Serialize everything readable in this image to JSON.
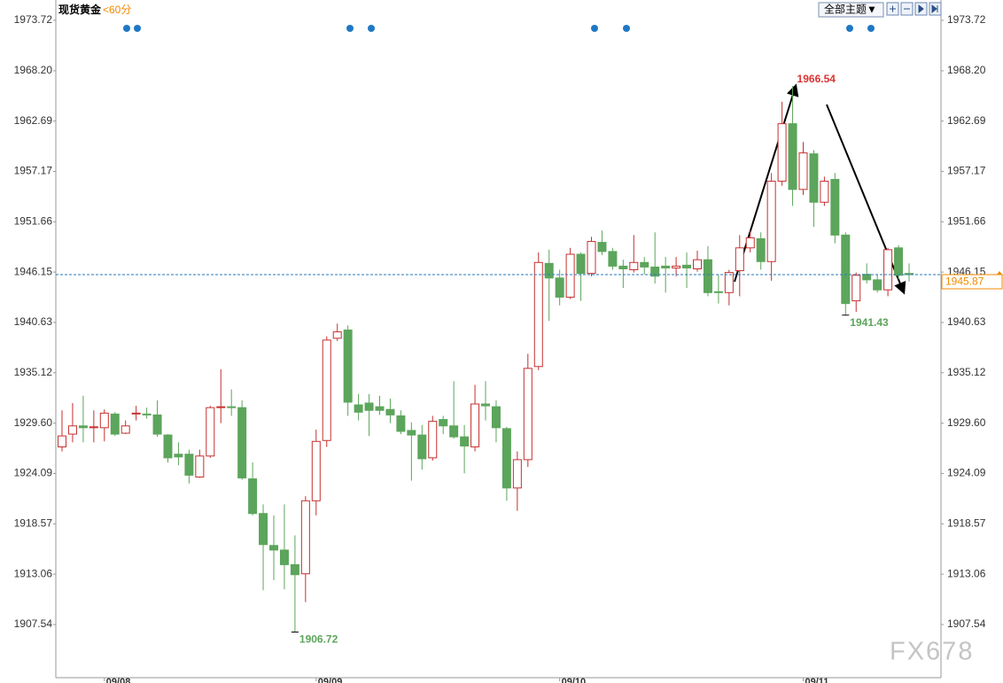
{
  "chart_data": {
    "type": "candlestick",
    "title": "现货黄金",
    "period": "<60分",
    "categories": [
      null,
      null,
      null,
      null,
      "09/08",
      null,
      null,
      null,
      null,
      null,
      null,
      null,
      null,
      null,
      null,
      null,
      null,
      null,
      null,
      null,
      null,
      null,
      null,
      null,
      "09/09",
      null,
      null,
      null,
      null,
      null,
      null,
      null,
      null,
      null,
      null,
      null,
      null,
      null,
      null,
      null,
      null,
      null,
      null,
      null,
      null,
      null,
      null,
      "09/10",
      null,
      null,
      null,
      null,
      null,
      null,
      null,
      null,
      null,
      null,
      null,
      null,
      null,
      null,
      null,
      null,
      null,
      null,
      null,
      null,
      null,
      null,
      "09/11",
      null,
      null,
      null,
      null,
      null,
      null,
      null,
      null,
      null,
      null
    ],
    "open": [
      1927.0,
      1928.4,
      1929.3,
      1929.1,
      1929.1,
      1930.6,
      1928.5,
      1930.6,
      1930.6,
      1930.5,
      1928.3,
      1926.2,
      1926.2,
      1923.7,
      1926.0,
      1931.3,
      1931.4,
      1931.3,
      1923.5,
      1919.7,
      1916.2,
      1915.7,
      1914.1,
      1913.1,
      1921.1,
      1927.7,
      1938.9,
      1939.8,
      1931.6,
      1931.8,
      1931.4,
      1931.1,
      1930.4,
      1928.8,
      1928.3,
      1925.8,
      1930.0,
      1929.3,
      1928.1,
      1927.0,
      1931.7,
      1931.4,
      1929.0,
      1922.5,
      1925.6,
      1935.8,
      1947.1,
      1945.5,
      1943.4,
      1948.1,
      1946.0,
      1949.4,
      1948.4,
      1946.8,
      1946.4,
      1947.2,
      1946.7,
      1946.8,
      1946.6,
      1946.9,
      1946.5,
      1947.5,
      1944.0,
      1943.9,
      1946.3,
      1948.8,
      1949.8,
      1947.3,
      1956.1,
      1962.4,
      1955.2,
      1959.1,
      1953.8,
      1956.3,
      1950.2,
      1943.0,
      1945.9,
      1945.3,
      1944.2,
      1948.8,
      1946.0
    ],
    "high": [
      1931.0,
      1931.8,
      1932.6,
      1931.0,
      1931.1,
      1930.8,
      1929.9,
      1931.5,
      1931.3,
      1932.1,
      1928.4,
      1927.5,
      1926.7,
      1926.7,
      1931.5,
      1935.5,
      1933.3,
      1932.1,
      1925.3,
      1920.7,
      1919.5,
      1920.7,
      1917.3,
      1921.6,
      1928.9,
      1939.1,
      1940.5,
      1940.3,
      1932.8,
      1932.8,
      1932.6,
      1932.3,
      1931.0,
      1929.7,
      1929.4,
      1930.4,
      1930.4,
      1934.2,
      1929.4,
      1933.8,
      1934.2,
      1932.1,
      1929.2,
      1926.5,
      1937.2,
      1948.3,
      1948.6,
      1946.4,
      1948.8,
      1948.3,
      1950.0,
      1950.7,
      1948.8,
      1947.5,
      1950.2,
      1947.8,
      1950.5,
      1947.8,
      1947.8,
      1948.3,
      1948.5,
      1949.0,
      1945.9,
      1946.4,
      1950.2,
      1950.7,
      1950.5,
      1957.0,
      1964.8,
      1966.54,
      1960.4,
      1959.5,
      1956.6,
      1957.0,
      1950.5,
      1946.1,
      1947.1,
      1945.9,
      1948.8,
      1949.1,
      1947.1
    ],
    "low": [
      1926.5,
      1927.5,
      1927.5,
      1927.5,
      1927.6,
      1928.2,
      1928.4,
      1929.9,
      1930.1,
      1928.1,
      1925.3,
      1925.0,
      1923.0,
      1923.6,
      1925.8,
      1929.6,
      1930.4,
      1923.4,
      1919.5,
      1911.3,
      1912.4,
      1911.4,
      1906.72,
      1910.0,
      1919.5,
      1927.0,
      1938.6,
      1930.4,
      1929.9,
      1928.2,
      1930.5,
      1929.6,
      1928.4,
      1923.3,
      1924.5,
      1925.5,
      1928.4,
      1927.9,
      1924.1,
      1926.5,
      1929.9,
      1927.5,
      1921.1,
      1920.0,
      1924.8,
      1935.4,
      1940.8,
      1942.5,
      1943.2,
      1943.0,
      1945.7,
      1948.0,
      1946.4,
      1944.4,
      1946.1,
      1945.9,
      1944.9,
      1943.9,
      1945.7,
      1944.4,
      1946.2,
      1943.5,
      1942.7,
      1942.5,
      1943.5,
      1948.3,
      1946.4,
      1945.2,
      1955.6,
      1953.4,
      1954.6,
      1951.1,
      1953.4,
      1949.3,
      1941.43,
      1941.8,
      1944.9,
      1943.9,
      1943.5,
      1945.4,
      1945.1
    ],
    "close": [
      1928.2,
      1929.3,
      1929.1,
      1929.2,
      1930.7,
      1928.4,
      1929.3,
      1930.7,
      1930.5,
      1928.4,
      1925.8,
      1925.9,
      1923.9,
      1926.0,
      1931.3,
      1931.4,
      1931.3,
      1923.6,
      1919.7,
      1916.3,
      1915.7,
      1914.1,
      1913.0,
      1921.1,
      1927.6,
      1938.7,
      1939.6,
      1931.9,
      1930.8,
      1931.0,
      1931.0,
      1930.5,
      1928.7,
      1928.3,
      1925.7,
      1929.8,
      1929.3,
      1928.1,
      1927.1,
      1931.7,
      1931.5,
      1929.1,
      1922.5,
      1925.6,
      1935.6,
      1947.2,
      1945.5,
      1943.4,
      1948.1,
      1946.0,
      1949.5,
      1948.4,
      1946.8,
      1946.5,
      1947.2,
      1946.7,
      1945.7,
      1946.6,
      1946.8,
      1946.6,
      1947.5,
      1943.9,
      1943.9,
      1946.1,
      1948.8,
      1949.9,
      1947.3,
      1956.1,
      1962.4,
      1955.2,
      1959.2,
      1953.8,
      1956.1,
      1950.2,
      1942.7,
      1945.8,
      1945.3,
      1944.2,
      1948.6,
      1945.8,
      1945.87
    ],
    "up_color": "#c62f2f",
    "down_color": "#5ca55c",
    "price_line_color": "#2a7ab8",
    "ylim": [
      1901.72,
      1975.95
    ],
    "yticks": [
      1973.72,
      {
        "value": 1968.2,
        "label": "1968.20"
      },
      1962.69,
      1957.17,
      1951.66,
      1946.15,
      1940.63,
      1935.12,
      {
        "value": 1929.6,
        "label": "1929.60"
      },
      1924.09,
      1918.57,
      1913.06,
      1907.54
    ],
    "grid": false
  },
  "toolbar": {
    "theme_button": "全部主题▼"
  },
  "watermark": "FX678"
}
